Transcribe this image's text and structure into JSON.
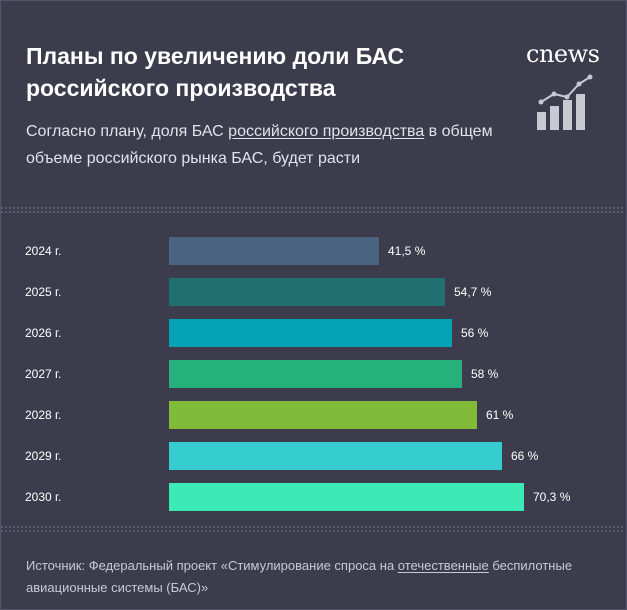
{
  "header": {
    "title": "Планы по увеличению доли БАС российского производства",
    "subtitle_pre": "Согласно плану, доля БАС ",
    "subtitle_link": "российского производства",
    "subtitle_post": " в общем объеме российского рынка БАС, будет расти",
    "logo": "cnews"
  },
  "chart_data": {
    "type": "bar",
    "orientation": "horizontal",
    "title": "Планы по увеличению доли БАС российского производства",
    "categories": [
      "2024 г.",
      "2025 г.",
      "2026 г.",
      "2027 г.",
      "2028 г.",
      "2029 г.",
      "2030 г."
    ],
    "values": [
      41.5,
      54.7,
      56,
      58,
      61,
      66,
      70.3
    ],
    "value_labels": [
      "41,5 %",
      "54,7 %",
      "56 %",
      "58 %",
      "61 %",
      "66 %",
      "70,3 %"
    ],
    "colors": [
      "#4a6381",
      "#1f706e",
      "#03a3b3",
      "#26b07b",
      "#80bb3a",
      "#35cccf",
      "#3ceab5"
    ],
    "unit": "%",
    "xlim": [
      0,
      70.3
    ]
  },
  "footer": {
    "source_pre": "Источник: Федеральный проект «Стимулирование спроса на ",
    "source_link": "отечественные",
    "source_post": " беспилотные авиационные системы (БАС)»"
  }
}
